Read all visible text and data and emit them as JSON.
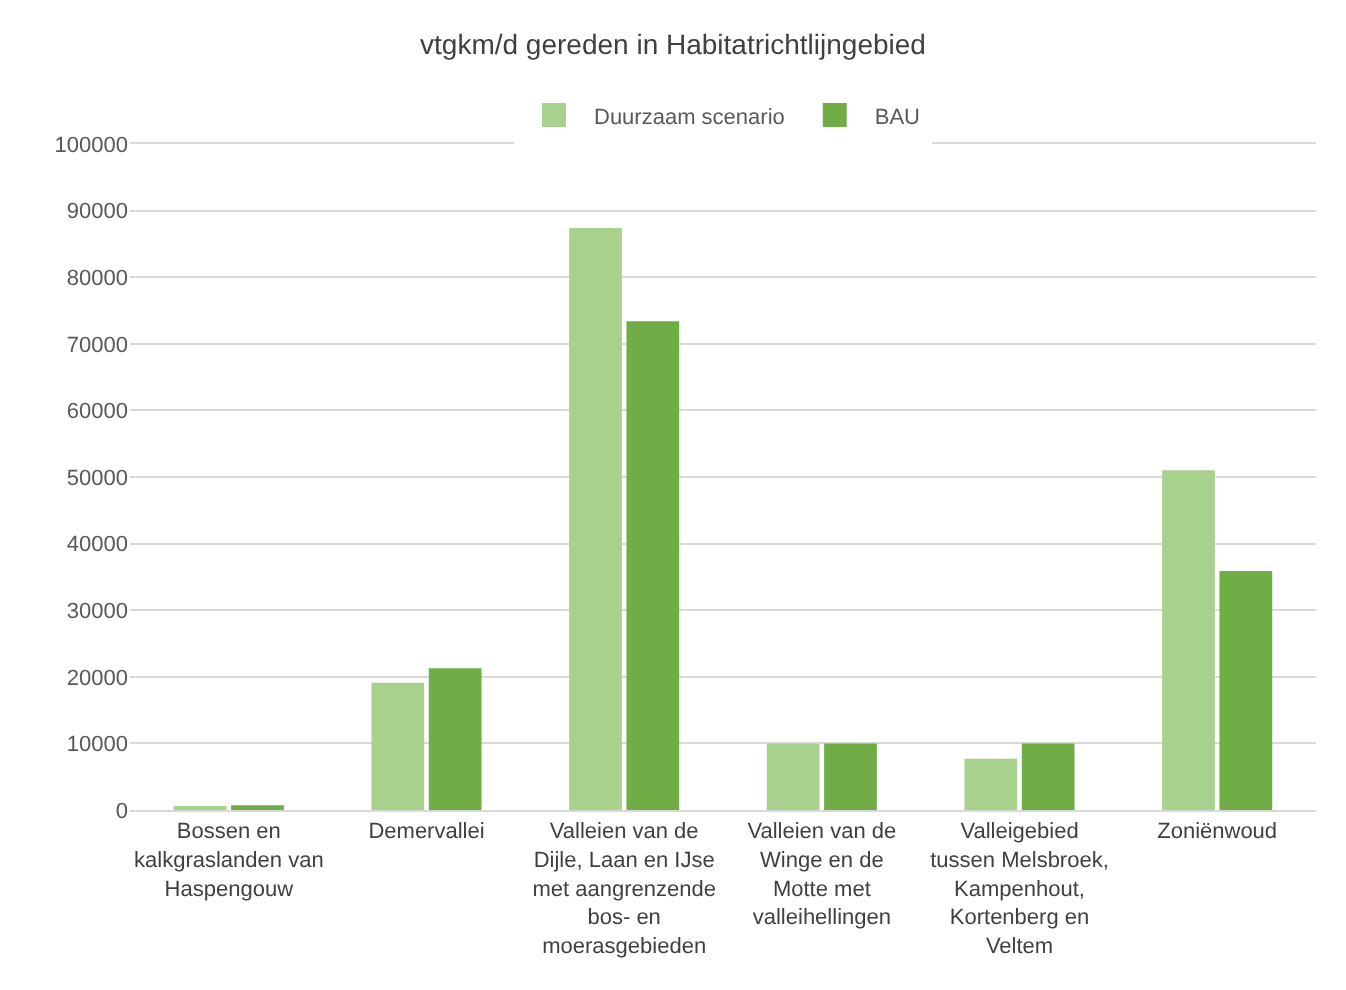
{
  "chart_data": {
    "type": "bar",
    "title": "vtgkm/d gereden in Habitatrichtlijngebied",
    "categories": [
      "Bossen en\nkalkgraslanden van\nHaspengouw",
      "Demervallei",
      "Valleien van de\nDijle, Laan en IJse\nmet aangrenzende\nbos- en\nmoerasgebieden",
      "Valleien van de\nWinge en de\nMotte met\nvalleihellingen",
      "Valleigebied\ntussen Melsbroek,\nKampenhout,\nKortenberg en\nVeltem",
      "Zoniënwoud"
    ],
    "series": [
      {
        "name": "Duurzaam scenario",
        "color": "#a9d18e",
        "values": [
          400,
          19100,
          87400,
          10000,
          7700,
          51000
        ]
      },
      {
        "name": "BAU",
        "color": "#70ad47",
        "values": [
          700,
          21300,
          73400,
          10000,
          10000,
          35900
        ]
      }
    ],
    "ylim": [
      0,
      100000
    ],
    "yticks": [
      0,
      10000,
      20000,
      30000,
      40000,
      50000,
      60000,
      70000,
      80000,
      90000,
      100000
    ],
    "grid": "y",
    "legend": "top"
  }
}
